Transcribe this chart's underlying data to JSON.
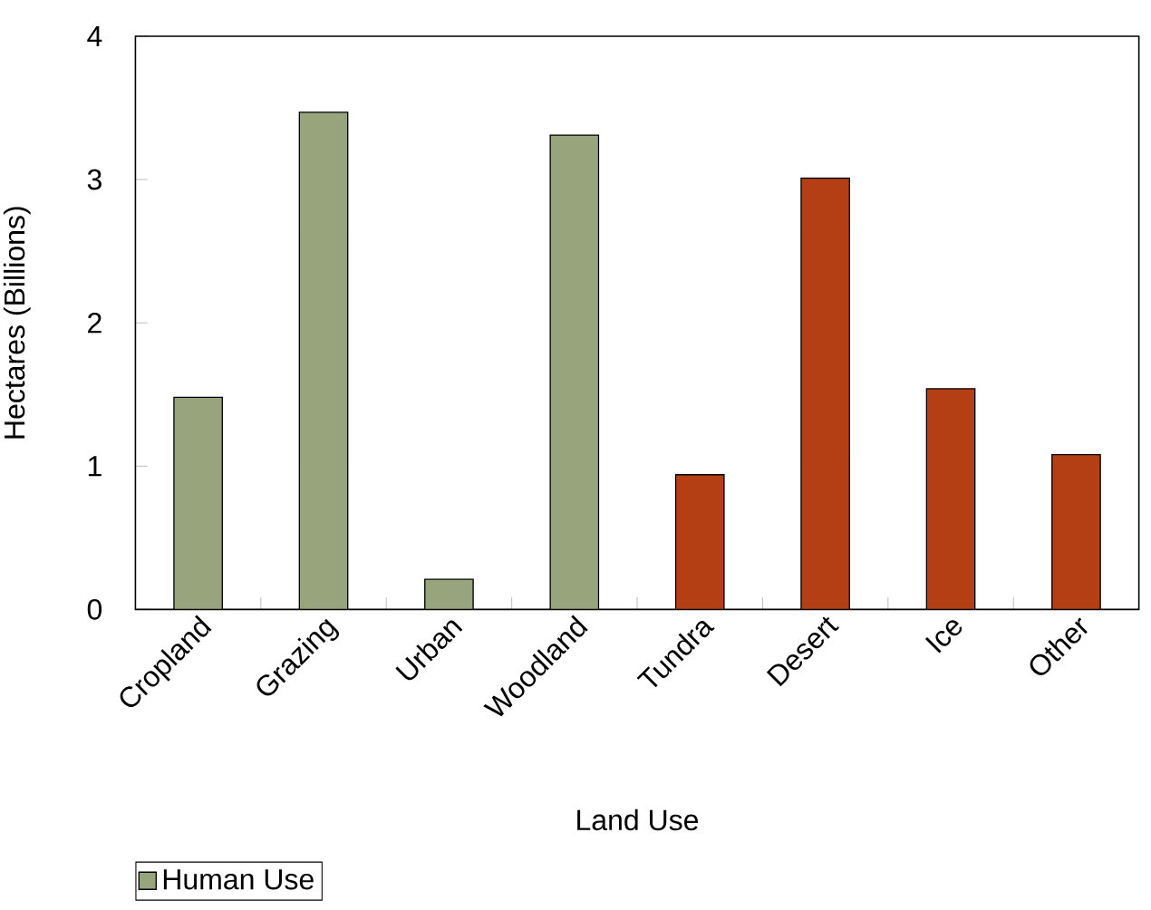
{
  "chart_data": {
    "type": "bar",
    "xlabel": "Land Use",
    "ylabel": "Hectares (Billions)",
    "categories": [
      "Cropland",
      "Grazing",
      "Urban",
      "Woodland",
      "Tundra",
      "Desert",
      "Ice",
      "Other"
    ],
    "series": [
      {
        "name": "Human Use",
        "color": "#97a47c",
        "values": [
          1.48,
          3.47,
          0.21,
          3.31,
          null,
          null,
          null,
          null
        ]
      },
      {
        "color": "#b43f14",
        "values": [
          null,
          null,
          null,
          null,
          0.94,
          3.01,
          1.54,
          1.08
        ]
      }
    ],
    "ylim": [
      0,
      4
    ],
    "yticks": [
      0,
      1,
      2,
      3,
      4
    ],
    "legend": "bottom left"
  }
}
